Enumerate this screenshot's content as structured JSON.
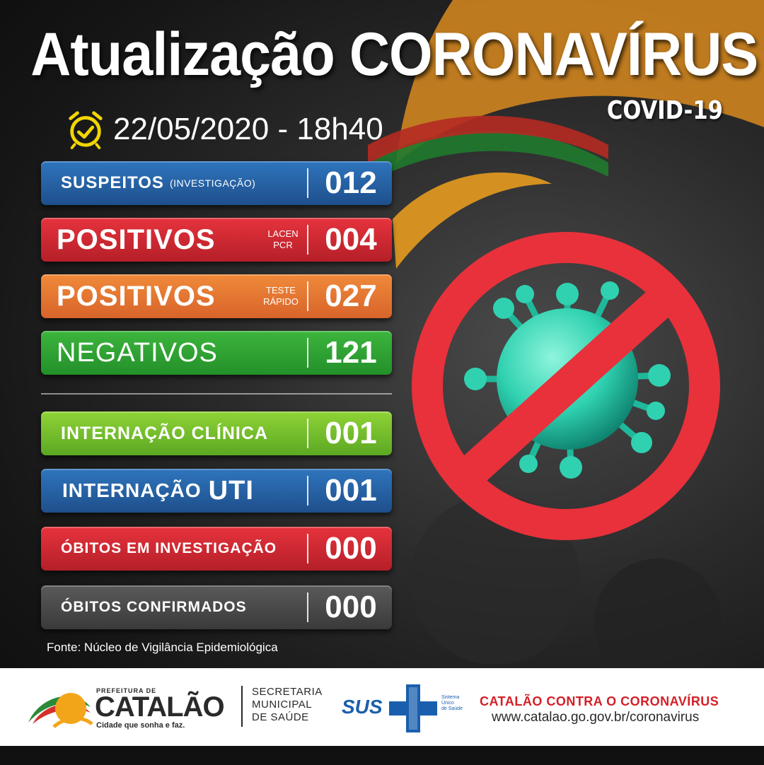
{
  "header": {
    "title": "Atualização CORONAVÍRUS",
    "subtitle": "COVID-19",
    "datetime": "22/05/2020 - 18h40",
    "clock_icon": "alarm-clock-check-icon",
    "accent_color": "#f2d600"
  },
  "stats": [
    {
      "label": "SUSPEITOS",
      "note": "(INVESTIGAÇÃO)",
      "value": "012",
      "color": "blue"
    },
    {
      "label": "POSITIVOS",
      "note_line1": "LACEN",
      "note_line2": "PCR",
      "value": "004",
      "color": "red"
    },
    {
      "label": "POSITIVOS",
      "note_line1": "TESTE",
      "note_line2": "RÁPIDO",
      "value": "027",
      "color": "orange"
    },
    {
      "label": "NEGATIVOS",
      "value": "121",
      "color": "green"
    },
    {
      "label": "INTERNAÇÃO CLÍNICA",
      "value": "001",
      "color": "lime"
    },
    {
      "label_a": "INTERNAÇÃO",
      "label_b": "UTI",
      "value": "001",
      "color": "blue"
    },
    {
      "label": "ÓBITOS EM INVESTIGAÇÃO",
      "value": "000",
      "color": "red"
    },
    {
      "label": "ÓBITOS CONFIRMADOS",
      "value": "000",
      "color": "gray"
    }
  ],
  "source": "Fonte: Núcleo de Vigilância Epidemiológica",
  "footer": {
    "pref_label": "PREFEITURA DE",
    "city": "CATALÃO",
    "tagline": "Cidade que sonha e faz.",
    "secretaria": [
      "SECRETARIA",
      "MUNICIPAL",
      "DE SAÚDE"
    ],
    "sus": "SUS",
    "sus_small": [
      "Sistema",
      "Único",
      "de Saúde"
    ],
    "campaign": "CATALÃO CONTRA O CORONAVÍRUS",
    "website": "www.catalao.go.gov.br/coronavirus"
  },
  "colors": {
    "blue": "#2a69b0",
    "red": "#d42a33",
    "orange": "#ea7a33",
    "green": "#31a535",
    "lime": "#78c22e",
    "gray": "#4a4a4a",
    "prohibition": "#e8313b",
    "virus": "#2fd1b0"
  },
  "graphic": {
    "icon": "prohibited-virus-icon"
  }
}
